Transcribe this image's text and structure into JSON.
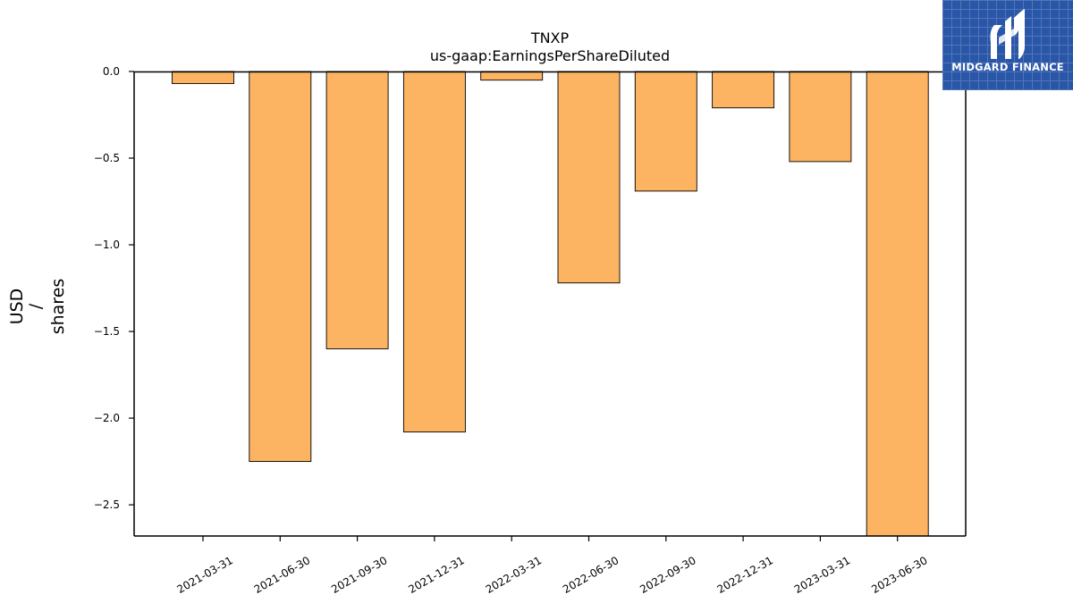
{
  "chart_data": {
    "type": "bar",
    "title": "TNXP",
    "subtitle": "us-gaap:EarningsPerShareDiluted",
    "ylabel_lines": [
      "USD",
      "/",
      "shares"
    ],
    "categories": [
      "2021-03-31",
      "2021-06-30",
      "2021-09-30",
      "2021-12-31",
      "2022-03-31",
      "2022-06-30",
      "2022-09-30",
      "2022-12-31",
      "2023-03-31",
      "2023-06-30"
    ],
    "values": [
      -0.07,
      -2.25,
      -1.6,
      -2.08,
      -0.05,
      -1.22,
      -0.69,
      -0.21,
      -0.52,
      -2.68
    ],
    "ylim": [
      -2.68,
      0.0
    ],
    "yticks": [
      0.0,
      -0.5,
      -1.0,
      -1.5,
      -2.0,
      -2.5
    ],
    "ytick_labels": [
      "0.0",
      "−0.5",
      "−1.0",
      "−1.5",
      "−2.0",
      "−2.5"
    ],
    "bar_color": "#fdb462",
    "bar_edge_color": "#000000",
    "grid": false,
    "legend": "none"
  },
  "logo": {
    "text": "MIDGARD FINANCE",
    "background": "#2a56a8"
  }
}
